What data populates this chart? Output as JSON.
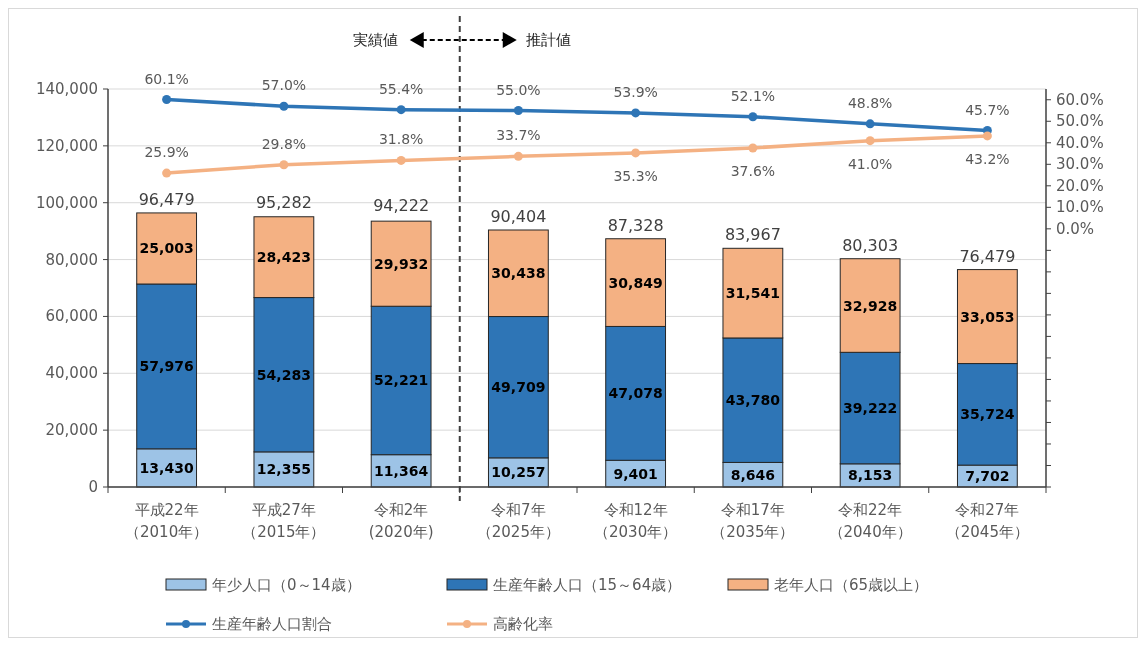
{
  "chart_data": {
    "type": "bar",
    "stacked": true,
    "categories": [
      "平成22年（2010年）",
      "平成27年（2015年）",
      "令和2年(2020年)",
      "令和7年（2025年）",
      "令和12年（2030年）",
      "令和17年（2035年）",
      "令和22年（2040年）",
      "令和27年（2045年）"
    ],
    "series": [
      {
        "name": "年少人口（0～14歳）",
        "color": "#9dc3e6",
        "values": [
          13430,
          12355,
          11364,
          10257,
          9401,
          8646,
          8153,
          7702
        ],
        "value_labels": [
          "13,430",
          "12,355",
          "11,364",
          "10,257",
          "9,401",
          "8,646",
          "8,153",
          "7,702"
        ]
      },
      {
        "name": "生産年齢人口（15～64歳）",
        "color": "#2e75b6",
        "values": [
          57976,
          54283,
          52221,
          49709,
          47078,
          43780,
          39222,
          35724
        ],
        "value_labels": [
          "57,976",
          "54,283",
          "52,221",
          "49,709",
          "47,078",
          "43,780",
          "39,222",
          "35,724"
        ]
      },
      {
        "name": "老年人口（65歳以上）",
        "color": "#f4b183",
        "values": [
          25003,
          28423,
          29932,
          30438,
          30849,
          31541,
          32928,
          33053
        ],
        "value_labels": [
          "25,003",
          "28,423",
          "29,932",
          "30,438",
          "30,849",
          "31,541",
          "32,928",
          "33,053"
        ]
      },
      {
        "name": "生産年齢人口割合",
        "type": "line",
        "axis": "y2",
        "color": "#2e75b6",
        "values": [
          60.1,
          57.0,
          55.4,
          55.0,
          53.9,
          52.1,
          48.8,
          45.7
        ],
        "value_labels": [
          "60.1%",
          "57.0%",
          "55.4%",
          "55.0%",
          "53.9%",
          "52.1%",
          "48.8%",
          "45.7%"
        ]
      },
      {
        "name": "高齢化率",
        "type": "line",
        "axis": "y2",
        "color": "#f4b183",
        "values": [
          25.9,
          29.8,
          31.8,
          33.7,
          35.3,
          37.6,
          41.0,
          43.2
        ],
        "value_labels": [
          "25.9%",
          "29.8%",
          "31.8%",
          "33.7%",
          "35.3%",
          "37.6%",
          "41.0%",
          "43.2%"
        ]
      }
    ],
    "ylim": [
      0,
      140000
    ],
    "yticks": [
      0,
      {
        "value": 20000,
        "label": "20,000"
      },
      {
        "value": 40000,
        "label": "40,000"
      },
      {
        "value": 60000,
        "label": "60,000"
      },
      {
        "value": 80000,
        "label": "80,000"
      },
      {
        "value": 100000,
        "label": "100,000"
      },
      {
        "value": 120000,
        "label": "120,000"
      },
      {
        "value": 140000,
        "label": "140,000"
      }
    ],
    "y2lim": [
      -120,
      65
    ],
    "y2ticks": [
      {
        "value": 60,
        "label": "60.0%"
      },
      {
        "value": 50,
        "label": "50.0%"
      },
      {
        "value": 40,
        "label": "40.0%"
      },
      {
        "value": 30,
        "label": "30.0%"
      },
      {
        "value": 20,
        "label": "20.0%"
      },
      {
        "value": 10,
        "label": "10.0%"
      },
      {
        "value": 0,
        "label": "0.0%"
      },
      {
        "value": -10,
        "label": null
      },
      {
        "value": -20,
        "label": null
      },
      {
        "value": -30,
        "label": null
      },
      {
        "value": -40,
        "label": null
      },
      {
        "value": -50,
        "label": null
      },
      {
        "value": -60,
        "label": null
      },
      {
        "value": -70,
        "label": null
      },
      {
        "value": -80,
        "label": null
      },
      {
        "value": -90,
        "label": null
      },
      {
        "value": -100,
        "label": null
      },
      {
        "value": -110,
        "label": null
      },
      {
        "value": -120,
        "label": null
      }
    ],
    "grid": "y",
    "legend": "bottom",
    "marker": "circle",
    "annotations": [
      "実績値",
      "推計値",
      {
        "text": "96,479",
        "x": "平成22年（2010年）",
        "y": 96479
      },
      {
        "text": "95,282",
        "x": "平成27年（2015年）",
        "y": 95282
      },
      {
        "text": "94,222",
        "x": "令和2年(2020年)",
        "y": 94222
      },
      {
        "text": "90,404",
        "x": "令和7年（2025年）",
        "y": 90404
      },
      {
        "text": "87,328",
        "x": "令和12年（2030年）",
        "y": 87328
      },
      {
        "text": "83,967",
        "x": "令和17年（2035年）",
        "y": 83967
      },
      {
        "text": "80,303",
        "x": "令和22年（2040年）",
        "y": 80303
      },
      {
        "text": "76,479",
        "x": "令和27年（2045年）",
        "y": 76479
      }
    ]
  }
}
